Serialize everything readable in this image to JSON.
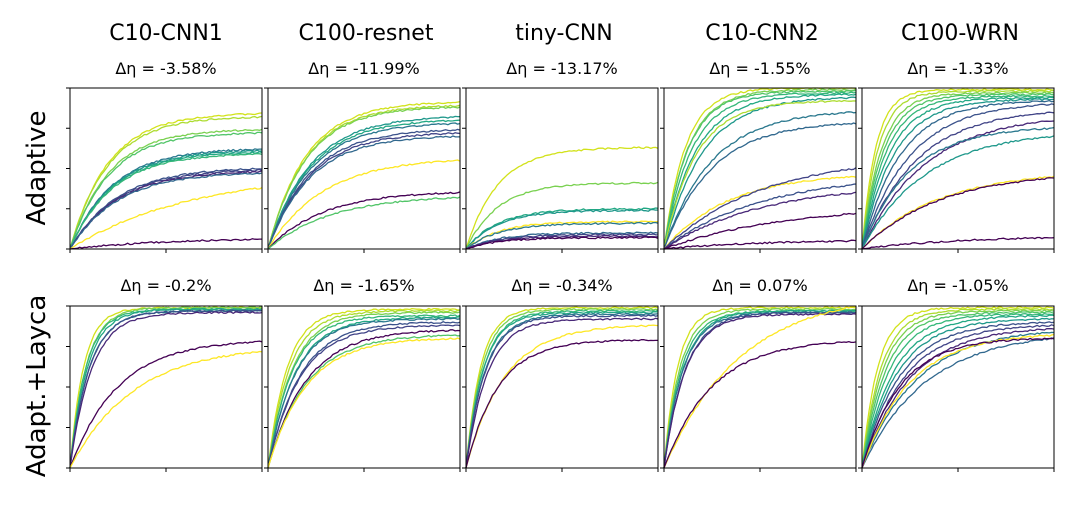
{
  "figure": {
    "columns": [
      "C10-CNN1",
      "C100-resnet",
      "tiny-CNN",
      "C10-CNN2",
      "C100-WRN"
    ],
    "rows": [
      "Adaptive",
      "Adapt.+Layca"
    ],
    "delta_symbol": "Δη",
    "colormap": "viridis"
  },
  "chart_data": [
    {
      "type": "line",
      "row": "Adaptive",
      "column": "C10-CNN1",
      "annotation": "Δη = -3.58%",
      "curves": [
        {
          "final": 0.84,
          "rate": 5,
          "color": "#d2e21b"
        },
        {
          "final": 0.82,
          "rate": 5,
          "color": "#addc30"
        },
        {
          "final": 0.74,
          "rate": 5,
          "color": "#7ad151"
        },
        {
          "final": 0.72,
          "rate": 5,
          "color": "#52c569"
        },
        {
          "final": 0.62,
          "rate": 4.5,
          "color": "#2a788e"
        },
        {
          "final": 0.61,
          "rate": 4.5,
          "color": "#1f988b"
        },
        {
          "final": 0.6,
          "rate": 4.5,
          "color": "#22a884"
        },
        {
          "final": 0.59,
          "rate": 4.5,
          "color": "#35b779"
        },
        {
          "final": 0.5,
          "rate": 4,
          "color": "#3b528b"
        },
        {
          "final": 0.49,
          "rate": 4,
          "color": "#414487"
        },
        {
          "final": 0.48,
          "rate": 4,
          "color": "#482878"
        },
        {
          "final": 0.47,
          "rate": 4,
          "color": "#31688e"
        },
        {
          "final": 0.38,
          "rate": 1.6,
          "color": "#fde725"
        },
        {
          "final": 0.06,
          "rate": 2,
          "color": "#440154"
        }
      ]
    },
    {
      "type": "line",
      "row": "Adaptive",
      "column": "C100-resnet",
      "annotation": "Δη = -11.99%",
      "curves": [
        {
          "final": 0.91,
          "rate": 5,
          "color": "#d2e21b"
        },
        {
          "final": 0.89,
          "rate": 5,
          "color": "#addc30"
        },
        {
          "final": 0.88,
          "rate": 5,
          "color": "#7ad151"
        },
        {
          "final": 0.82,
          "rate": 4.5,
          "color": "#1f988b"
        },
        {
          "final": 0.8,
          "rate": 4.5,
          "color": "#22a884"
        },
        {
          "final": 0.78,
          "rate": 4.5,
          "color": "#2a788e"
        },
        {
          "final": 0.74,
          "rate": 4.5,
          "color": "#3b528b"
        },
        {
          "final": 0.72,
          "rate": 4.5,
          "color": "#414487"
        },
        {
          "final": 0.7,
          "rate": 4.5,
          "color": "#31688e"
        },
        {
          "final": 0.55,
          "rate": 3.5,
          "color": "#fde725"
        },
        {
          "final": 0.35,
          "rate": 3.5,
          "color": "#440154"
        },
        {
          "final": 0.32,
          "rate": 3,
          "color": "#52c569"
        }
      ]
    },
    {
      "type": "line",
      "row": "Adaptive",
      "column": "tiny-CNN",
      "annotation": "Δη = -13.17%",
      "curves": [
        {
          "final": 0.63,
          "rate": 6,
          "color": "#d2e21b"
        },
        {
          "final": 0.41,
          "rate": 6,
          "color": "#7ad151"
        },
        {
          "final": 0.25,
          "rate": 6,
          "color": "#22a884"
        },
        {
          "final": 0.24,
          "rate": 6,
          "color": "#1f988b"
        },
        {
          "final": 0.17,
          "rate": 6,
          "color": "#fde725"
        },
        {
          "final": 0.16,
          "rate": 6,
          "color": "#2a788e"
        },
        {
          "final": 0.1,
          "rate": 6,
          "color": "#31688e"
        },
        {
          "final": 0.09,
          "rate": 6,
          "color": "#414487"
        },
        {
          "final": 0.08,
          "rate": 6,
          "color": "#482878"
        },
        {
          "final": 0.07,
          "rate": 6,
          "color": "#440154"
        }
      ]
    },
    {
      "type": "line",
      "row": "Adaptive",
      "column": "C10-CNN2",
      "annotation": "Δη = -1.55%",
      "curves": [
        {
          "final": 1.0,
          "rate": 9,
          "color": "#d2e21b"
        },
        {
          "final": 0.99,
          "rate": 8,
          "color": "#7ad151"
        },
        {
          "final": 0.98,
          "rate": 8,
          "color": "#52c569"
        },
        {
          "final": 0.97,
          "rate": 7,
          "color": "#35b779"
        },
        {
          "final": 0.96,
          "rate": 6,
          "color": "#22a884"
        },
        {
          "final": 0.94,
          "rate": 5,
          "color": "#1f988b"
        },
        {
          "final": 0.92,
          "rate": 6,
          "color": "#addc30"
        },
        {
          "final": 0.85,
          "rate": 4,
          "color": "#2a788e"
        },
        {
          "final": 0.78,
          "rate": 4,
          "color": "#31688e"
        },
        {
          "final": 0.45,
          "rate": 3,
          "color": "#fde725"
        },
        {
          "final": 0.5,
          "rate": 2,
          "color": "#414487"
        },
        {
          "final": 0.4,
          "rate": 2,
          "color": "#3b528b"
        },
        {
          "final": 0.35,
          "rate": 2,
          "color": "#482878"
        },
        {
          "final": 0.22,
          "rate": 1.6,
          "color": "#440154"
        },
        {
          "final": 0.05,
          "rate": 2,
          "color": "#440154"
        }
      ]
    },
    {
      "type": "line",
      "row": "Adaptive",
      "column": "C100-WRN",
      "annotation": "Δη = -1.33%",
      "curves": [
        {
          "final": 0.99,
          "rate": 14,
          "color": "#d2e21b"
        },
        {
          "final": 0.98,
          "rate": 12,
          "color": "#addc30"
        },
        {
          "final": 0.97,
          "rate": 10,
          "color": "#7ad151"
        },
        {
          "final": 0.96,
          "rate": 9,
          "color": "#52c569"
        },
        {
          "final": 0.95,
          "rate": 8,
          "color": "#35b779"
        },
        {
          "final": 0.94,
          "rate": 7,
          "color": "#22a884"
        },
        {
          "final": 0.93,
          "rate": 6,
          "color": "#1f988b"
        },
        {
          "final": 0.92,
          "rate": 5,
          "color": "#31688e"
        },
        {
          "final": 0.9,
          "rate": 4,
          "color": "#3b528b"
        },
        {
          "final": 0.85,
          "rate": 3.5,
          "color": "#414487"
        },
        {
          "final": 0.8,
          "rate": 3,
          "color": "#482878"
        },
        {
          "final": 0.75,
          "rate": 4,
          "color": "#2a788e"
        },
        {
          "final": 0.7,
          "rate": 3,
          "color": "#1f988b"
        },
        {
          "final": 0.45,
          "rate": 2.5,
          "color": "#fde725"
        },
        {
          "final": 0.44,
          "rate": 2.5,
          "color": "#440154"
        },
        {
          "final": 0.07,
          "rate": 2,
          "color": "#440154"
        }
      ]
    },
    {
      "type": "line",
      "row": "Adapt.+Layca",
      "column": "C10-CNN1",
      "annotation": "Δη = -0.2%",
      "curves": [
        {
          "final": 0.99,
          "rate": 14,
          "color": "#d2e21b"
        },
        {
          "final": 0.99,
          "rate": 12,
          "color": "#7ad151"
        },
        {
          "final": 0.98,
          "rate": 12,
          "color": "#35b779"
        },
        {
          "final": 0.98,
          "rate": 11,
          "color": "#22a884"
        },
        {
          "final": 0.97,
          "rate": 10,
          "color": "#2a788e"
        },
        {
          "final": 0.97,
          "rate": 10,
          "color": "#3b528b"
        },
        {
          "final": 0.96,
          "rate": 9,
          "color": "#482878"
        },
        {
          "final": 0.78,
          "rate": 4,
          "color": "#440154"
        },
        {
          "final": 0.72,
          "rate": 3,
          "color": "#fde725"
        }
      ]
    },
    {
      "type": "line",
      "row": "Adapt.+Layca",
      "column": "C100-resnet",
      "annotation": "Δη = -1.65%",
      "curves": [
        {
          "final": 0.98,
          "rate": 10,
          "color": "#d2e21b"
        },
        {
          "final": 0.97,
          "rate": 9,
          "color": "#addc30"
        },
        {
          "final": 0.96,
          "rate": 8,
          "color": "#7ad151"
        },
        {
          "final": 0.94,
          "rate": 8,
          "color": "#35b779"
        },
        {
          "final": 0.93,
          "rate": 7,
          "color": "#22a884"
        },
        {
          "final": 0.92,
          "rate": 7,
          "color": "#2a788e"
        },
        {
          "final": 0.9,
          "rate": 6,
          "color": "#3b528b"
        },
        {
          "final": 0.88,
          "rate": 6,
          "color": "#414487"
        },
        {
          "final": 0.85,
          "rate": 5,
          "color": "#440154"
        },
        {
          "final": 0.82,
          "rate": 5,
          "color": "#52c569"
        },
        {
          "final": 0.8,
          "rate": 5,
          "color": "#fde725"
        }
      ]
    },
    {
      "type": "line",
      "row": "Adapt.+Layca",
      "column": "tiny-CNN",
      "annotation": "Δη = -0.34%",
      "curves": [
        {
          "final": 0.99,
          "rate": 13,
          "color": "#d2e21b"
        },
        {
          "final": 0.98,
          "rate": 12,
          "color": "#7ad151"
        },
        {
          "final": 0.97,
          "rate": 11,
          "color": "#35b779"
        },
        {
          "final": 0.96,
          "rate": 11,
          "color": "#22a884"
        },
        {
          "final": 0.95,
          "rate": 10,
          "color": "#2a788e"
        },
        {
          "final": 0.94,
          "rate": 10,
          "color": "#3b528b"
        },
        {
          "final": 0.92,
          "rate": 9,
          "color": "#482878"
        },
        {
          "final": 0.88,
          "rate": 5,
          "color": "#fde725"
        },
        {
          "final": 0.79,
          "rate": 6,
          "color": "#440154"
        }
      ]
    },
    {
      "type": "line",
      "row": "Adapt.+Layca",
      "column": "C10-CNN2",
      "annotation": "Δη = 0.07%",
      "curves": [
        {
          "final": 0.99,
          "rate": 14,
          "color": "#d2e21b"
        },
        {
          "final": 0.98,
          "rate": 12,
          "color": "#7ad151"
        },
        {
          "final": 0.97,
          "rate": 11,
          "color": "#35b779"
        },
        {
          "final": 0.97,
          "rate": 10,
          "color": "#22a884"
        },
        {
          "final": 0.96,
          "rate": 10,
          "color": "#2a788e"
        },
        {
          "final": 0.96,
          "rate": 9,
          "color": "#3b528b"
        },
        {
          "final": 0.95,
          "rate": 9,
          "color": "#482878"
        },
        {
          "final": 1.0,
          "rate": 2.5,
          "color": "#fde725"
        },
        {
          "final": 0.78,
          "rate": 4,
          "color": "#440154"
        }
      ]
    },
    {
      "type": "line",
      "row": "Adapt.+Layca",
      "column": "C100-WRN",
      "annotation": "Δη = -1.05%",
      "curves": [
        {
          "final": 0.99,
          "rate": 12,
          "color": "#d2e21b"
        },
        {
          "final": 0.98,
          "rate": 10,
          "color": "#addc30"
        },
        {
          "final": 0.97,
          "rate": 9,
          "color": "#7ad151"
        },
        {
          "final": 0.96,
          "rate": 8,
          "color": "#52c569"
        },
        {
          "final": 0.95,
          "rate": 7,
          "color": "#35b779"
        },
        {
          "final": 0.94,
          "rate": 6,
          "color": "#22a884"
        },
        {
          "final": 0.92,
          "rate": 5.5,
          "color": "#1f988b"
        },
        {
          "final": 0.9,
          "rate": 5,
          "color": "#3b528b"
        },
        {
          "final": 0.88,
          "rate": 4.5,
          "color": "#414487"
        },
        {
          "final": 0.86,
          "rate": 4,
          "color": "#482878"
        },
        {
          "final": 0.84,
          "rate": 3.5,
          "color": "#2a788e"
        },
        {
          "final": 0.8,
          "rate": 3,
          "color": "#31688e"
        },
        {
          "final": 0.82,
          "rate": 4,
          "color": "#fde725"
        },
        {
          "final": 0.8,
          "rate": 5,
          "color": "#440154"
        }
      ]
    }
  ]
}
